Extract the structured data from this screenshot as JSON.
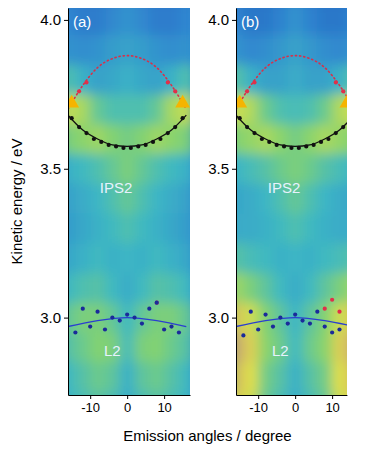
{
  "chart_data": [
    {
      "type": "scatter",
      "title": "(a)",
      "x_label": "Emission angles / degree",
      "y_label": "Kinetic energy / eV",
      "xlim": [
        -16,
        17
      ],
      "xticks": [
        -10,
        0,
        10
      ],
      "ylim": [
        2.74,
        4.04
      ],
      "yticks": [
        {
          "value": 3,
          "label": "3.0"
        },
        {
          "value": 3.5,
          "label": "3.5"
        },
        {
          "value": 4,
          "label": "4.0"
        }
      ],
      "intensity": {
        "zlim": [
          0,
          1
        ],
        "x": [
          -16,
          -12,
          -8,
          -4,
          0,
          4,
          8,
          12,
          16
        ],
        "y": [
          4.1,
          4.0,
          3.9,
          3.8,
          3.7,
          3.6,
          3.5,
          3.4,
          3.3,
          3.2,
          3.1,
          3.0,
          2.9,
          2.8,
          2.7
        ],
        "values": [
          [
            0.22,
            0.2,
            0.2,
            0.22,
            0.28,
            0.22,
            0.2,
            0.2,
            0.22
          ],
          [
            0.25,
            0.22,
            0.22,
            0.26,
            0.3,
            0.26,
            0.22,
            0.22,
            0.25
          ],
          [
            0.3,
            0.28,
            0.3,
            0.34,
            0.36,
            0.34,
            0.3,
            0.28,
            0.3
          ],
          [
            0.5,
            0.42,
            0.36,
            0.38,
            0.42,
            0.38,
            0.36,
            0.42,
            0.5
          ],
          [
            0.78,
            0.72,
            0.56,
            0.5,
            0.5,
            0.5,
            0.56,
            0.72,
            0.78
          ],
          [
            0.62,
            0.66,
            0.7,
            0.64,
            0.6,
            0.64,
            0.7,
            0.66,
            0.62
          ],
          [
            0.42,
            0.46,
            0.5,
            0.56,
            0.62,
            0.56,
            0.5,
            0.46,
            0.42
          ],
          [
            0.36,
            0.4,
            0.44,
            0.5,
            0.56,
            0.5,
            0.44,
            0.4,
            0.36
          ],
          [
            0.34,
            0.38,
            0.42,
            0.46,
            0.5,
            0.46,
            0.42,
            0.38,
            0.34
          ],
          [
            0.38,
            0.42,
            0.46,
            0.42,
            0.44,
            0.42,
            0.46,
            0.42,
            0.38
          ],
          [
            0.46,
            0.5,
            0.52,
            0.46,
            0.4,
            0.46,
            0.52,
            0.5,
            0.46
          ],
          [
            0.56,
            0.62,
            0.62,
            0.56,
            0.46,
            0.56,
            0.62,
            0.62,
            0.56
          ],
          [
            0.52,
            0.58,
            0.64,
            0.62,
            0.48,
            0.62,
            0.64,
            0.58,
            0.52
          ],
          [
            0.46,
            0.52,
            0.58,
            0.54,
            0.42,
            0.54,
            0.58,
            0.52,
            0.46
          ],
          [
            0.44,
            0.48,
            0.52,
            0.48,
            0.4,
            0.48,
            0.52,
            0.48,
            0.44
          ]
        ]
      },
      "series": [
        {
          "type": "line",
          "color": "#d8304a",
          "line_style": "dotted",
          "x": [
            -16,
            -12,
            -8,
            -4,
            0,
            4,
            8,
            12,
            16
          ],
          "values": [
            3.7,
            3.78,
            3.84,
            3.87,
            3.88,
            3.87,
            3.84,
            3.78,
            3.7
          ]
        },
        {
          "type": "line",
          "color": "#111111",
          "line_style": "solid",
          "x": [
            -16,
            -12,
            -8,
            -4,
            0,
            4,
            8,
            12,
            16
          ],
          "values": [
            3.68,
            3.63,
            3.6,
            3.58,
            3.575,
            3.58,
            3.6,
            3.63,
            3.68
          ]
        },
        {
          "type": "scatter",
          "color": "#111111",
          "marker": "circle",
          "x": [
            -15,
            -13,
            -11,
            -9,
            -7,
            -5,
            -3,
            -1,
            1,
            3,
            5,
            7,
            9,
            11,
            13,
            15
          ],
          "values": [
            3.67,
            3.64,
            3.62,
            3.6,
            3.59,
            3.58,
            3.575,
            3.57,
            3.57,
            3.575,
            3.58,
            3.59,
            3.6,
            3.62,
            3.64,
            3.67
          ]
        },
        {
          "type": "scatter",
          "color": "#e0304a",
          "marker": "circle",
          "x": [
            -15,
            -13,
            -11,
            11,
            13,
            15,
            8
          ],
          "values": [
            3.72,
            3.76,
            3.79,
            3.79,
            3.76,
            3.72,
            3.05
          ]
        },
        {
          "type": "line",
          "color": "#2a3fd0",
          "line_style": "solid",
          "x": [
            -16,
            -8,
            0,
            8,
            16
          ],
          "values": [
            2.97,
            2.99,
            3.0,
            2.99,
            2.97
          ]
        },
        {
          "type": "scatter",
          "color": "#1a2a9a",
          "marker": "circle",
          "x": [
            -14,
            -12,
            -10,
            -8,
            -6,
            -4,
            -2,
            0,
            2,
            4,
            6,
            8,
            10,
            12,
            14
          ],
          "values": [
            2.95,
            3.03,
            2.97,
            3.02,
            2.96,
            3.0,
            2.99,
            3.01,
            3.0,
            2.98,
            3.03,
            3.05,
            2.96,
            2.97,
            2.95
          ]
        },
        {
          "type": "scatter",
          "color": "#f5b400",
          "marker": "triangle",
          "x": [
            -15,
            15
          ],
          "values": [
            3.72,
            3.72
          ]
        }
      ],
      "annotations": [
        {
          "text": "IPS2",
          "x": -3,
          "y": 3.42
        },
        {
          "text": "L2",
          "x": -4,
          "y": 2.87
        }
      ]
    },
    {
      "type": "scatter",
      "title": "(b)",
      "xlim": [
        -16,
        14
      ],
      "xticks": [
        -10,
        0,
        10
      ],
      "ylim": [
        2.74,
        4.04
      ],
      "yticks": [
        {
          "value": 3,
          "label": "3.0"
        },
        {
          "value": 3.5,
          "label": "3.5"
        },
        {
          "value": 4,
          "label": "4.0"
        }
      ],
      "intensity": {
        "zlim": [
          0,
          1
        ],
        "x": [
          -16,
          -12,
          -8,
          -4,
          0,
          4,
          8,
          12,
          16
        ],
        "y": [
          4.1,
          4.0,
          3.9,
          3.8,
          3.7,
          3.6,
          3.5,
          3.4,
          3.3,
          3.2,
          3.1,
          3.0,
          2.9,
          2.8,
          2.7
        ],
        "values": [
          [
            0.2,
            0.18,
            0.18,
            0.2,
            0.26,
            0.2,
            0.18,
            0.18,
            0.2
          ],
          [
            0.24,
            0.2,
            0.2,
            0.24,
            0.3,
            0.24,
            0.2,
            0.2,
            0.24
          ],
          [
            0.3,
            0.26,
            0.28,
            0.32,
            0.36,
            0.32,
            0.28,
            0.26,
            0.3
          ],
          [
            0.52,
            0.42,
            0.36,
            0.36,
            0.4,
            0.36,
            0.36,
            0.42,
            0.52
          ],
          [
            0.8,
            0.74,
            0.58,
            0.5,
            0.48,
            0.5,
            0.58,
            0.74,
            0.8
          ],
          [
            0.64,
            0.68,
            0.72,
            0.66,
            0.6,
            0.66,
            0.72,
            0.68,
            0.64
          ],
          [
            0.44,
            0.48,
            0.52,
            0.58,
            0.62,
            0.58,
            0.52,
            0.48,
            0.44
          ],
          [
            0.38,
            0.4,
            0.44,
            0.5,
            0.56,
            0.5,
            0.44,
            0.4,
            0.38
          ],
          [
            0.4,
            0.4,
            0.42,
            0.46,
            0.5,
            0.46,
            0.42,
            0.4,
            0.4
          ],
          [
            0.52,
            0.48,
            0.46,
            0.42,
            0.44,
            0.42,
            0.46,
            0.48,
            0.52
          ],
          [
            0.7,
            0.62,
            0.54,
            0.46,
            0.4,
            0.46,
            0.54,
            0.62,
            0.7
          ],
          [
            0.9,
            0.8,
            0.64,
            0.54,
            0.44,
            0.54,
            0.64,
            0.8,
            0.9
          ],
          [
            0.96,
            0.88,
            0.66,
            0.58,
            0.46,
            0.58,
            0.66,
            0.88,
            0.96
          ],
          [
            0.92,
            0.84,
            0.6,
            0.52,
            0.42,
            0.52,
            0.6,
            0.84,
            0.92
          ],
          [
            0.88,
            0.8,
            0.56,
            0.48,
            0.4,
            0.48,
            0.56,
            0.8,
            0.88
          ]
        ]
      },
      "series": [
        {
          "type": "line",
          "color": "#d8304a",
          "line_style": "dotted",
          "x": [
            -16,
            -12,
            -8,
            -4,
            0,
            4,
            8,
            12,
            16
          ],
          "values": [
            3.7,
            3.78,
            3.84,
            3.87,
            3.88,
            3.87,
            3.84,
            3.78,
            3.7
          ]
        },
        {
          "type": "line",
          "color": "#111111",
          "line_style": "solid",
          "x": [
            -16,
            -12,
            -8,
            -4,
            0,
            4,
            8,
            12,
            16
          ],
          "values": [
            3.68,
            3.63,
            3.6,
            3.58,
            3.575,
            3.58,
            3.6,
            3.63,
            3.68
          ]
        },
        {
          "type": "scatter",
          "color": "#111111",
          "marker": "circle",
          "x": [
            -15,
            -13,
            -11,
            -9,
            -7,
            -5,
            -3,
            -1,
            1,
            3,
            5,
            7,
            9,
            11,
            13
          ],
          "values": [
            3.67,
            3.64,
            3.62,
            3.6,
            3.59,
            3.58,
            3.575,
            3.57,
            3.57,
            3.575,
            3.58,
            3.59,
            3.6,
            3.62,
            3.64
          ]
        },
        {
          "type": "scatter",
          "color": "#e0304a",
          "marker": "circle",
          "x": [
            -15,
            -13,
            -11,
            11,
            13,
            8,
            10,
            12
          ],
          "values": [
            3.72,
            3.76,
            3.79,
            3.79,
            3.76,
            3.03,
            3.06,
            3.02
          ]
        },
        {
          "type": "line",
          "color": "#2a3fd0",
          "line_style": "solid",
          "x": [
            -16,
            -8,
            0,
            8,
            16
          ],
          "values": [
            2.97,
            2.99,
            3.0,
            2.99,
            2.97
          ]
        },
        {
          "type": "scatter",
          "color": "#1a2a9a",
          "marker": "circle",
          "x": [
            -14,
            -12,
            -10,
            -8,
            -6,
            -4,
            -2,
            0,
            2,
            4,
            6,
            8,
            10,
            12
          ],
          "values": [
            2.94,
            3.02,
            2.96,
            3.01,
            2.97,
            3.0,
            2.98,
            3.01,
            2.99,
            2.98,
            3.02,
            2.97,
            2.95,
            2.96
          ]
        },
        {
          "type": "scatter",
          "color": "#f5b400",
          "marker": "triangle",
          "x": [
            -15,
            14
          ],
          "values": [
            3.72,
            3.72
          ]
        }
      ],
      "annotations": [
        {
          "text": "IPS2",
          "x": -3,
          "y": 3.42
        },
        {
          "text": "L2",
          "x": -4,
          "y": 2.87
        }
      ]
    }
  ]
}
